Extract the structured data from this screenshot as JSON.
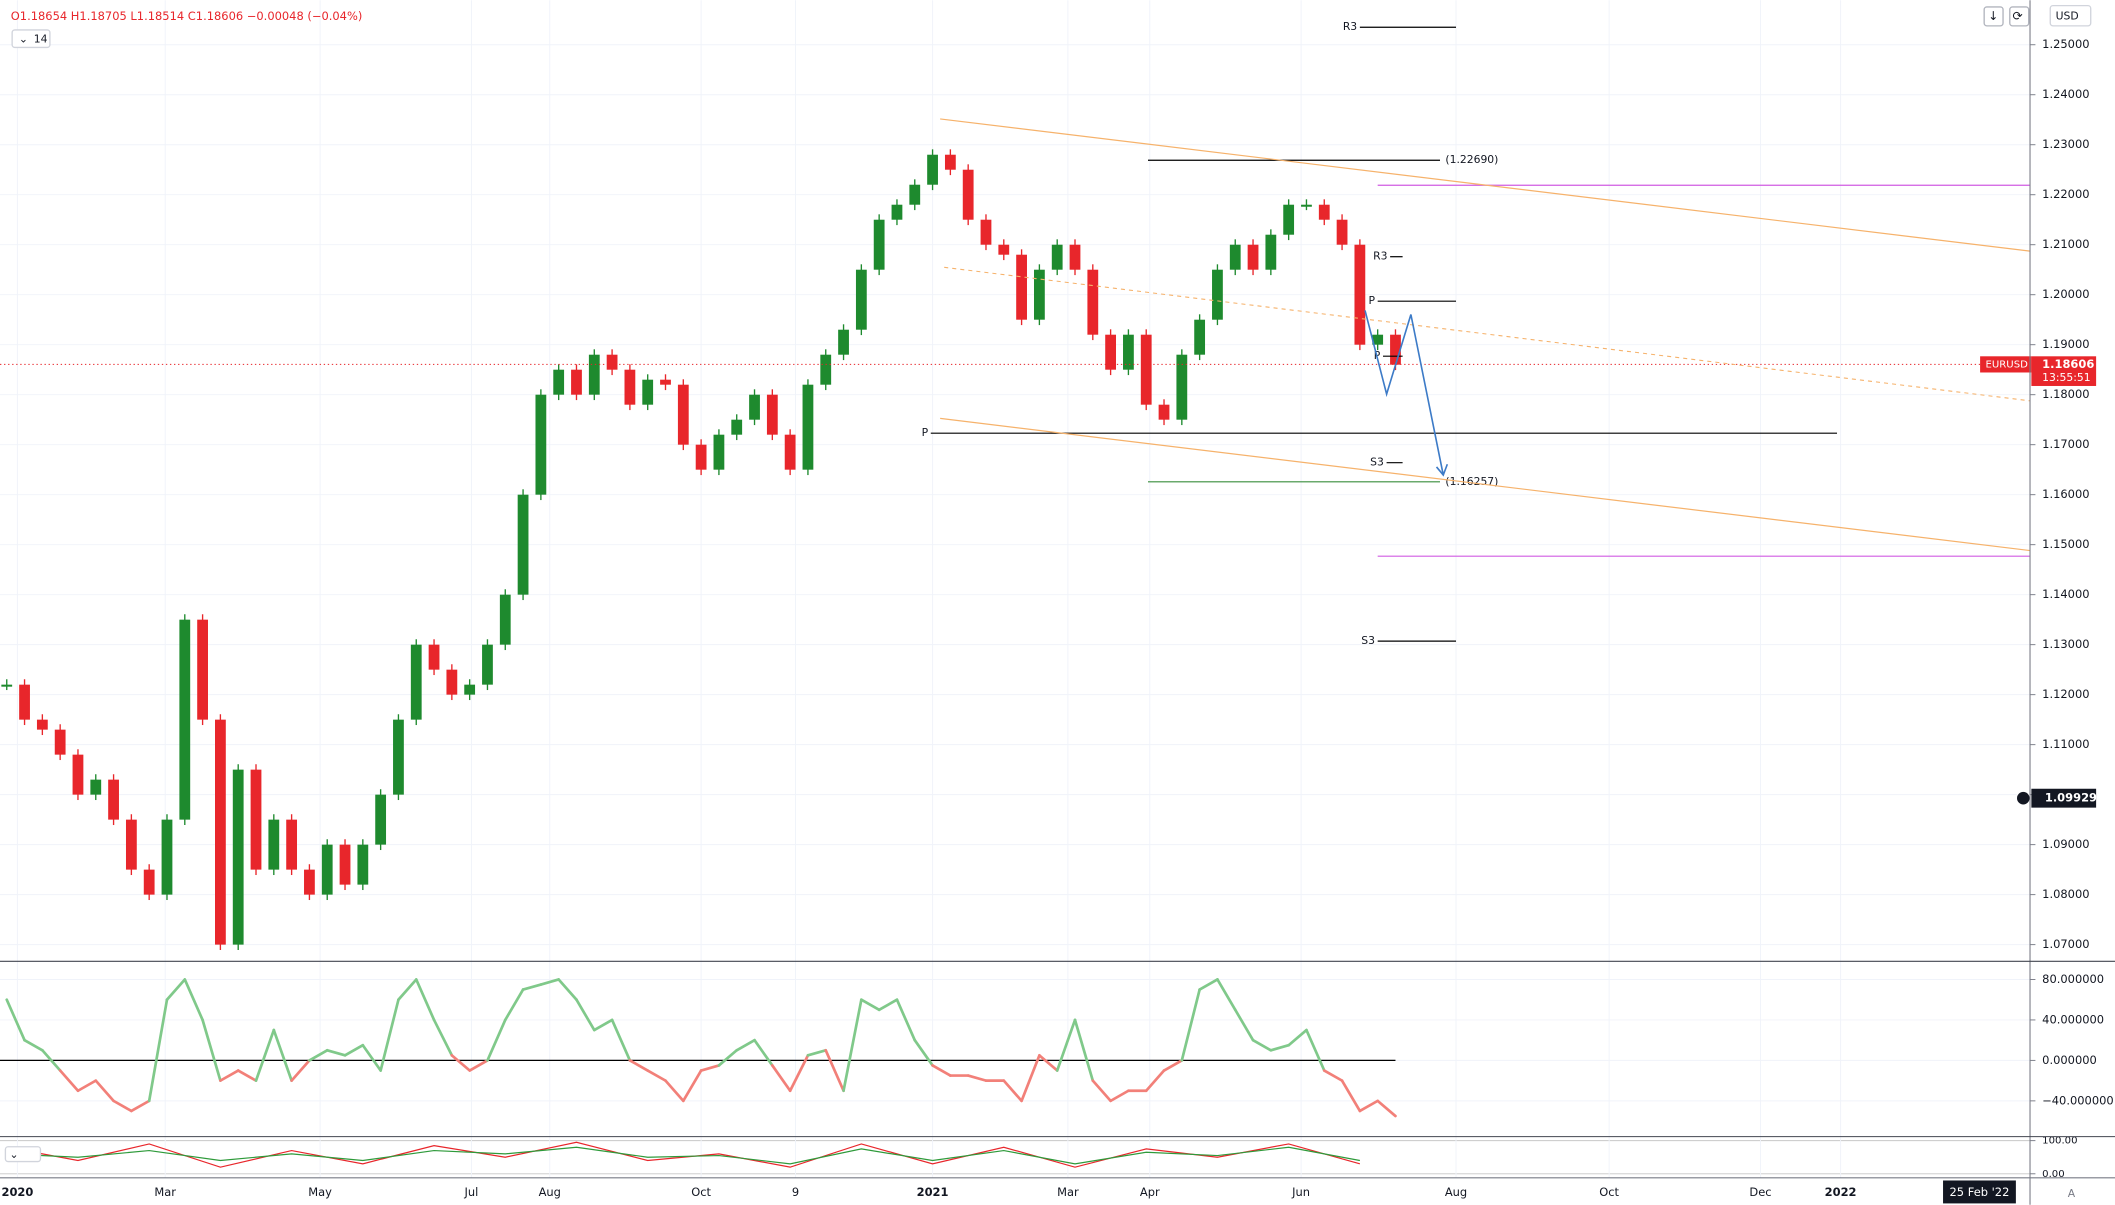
{
  "header": {
    "ohlc": "O1.18654 H1.18705 L1.18514 C1.18606 −0.00048 (−0.04%)",
    "interval": "14",
    "currency": "USD"
  },
  "chart_data": [
    {
      "type": "candlestick",
      "symbol": "EURUSD",
      "up_color": "#1e8a2e",
      "down_color": "#e8262b",
      "x": [
        0,
        1,
        2,
        3,
        4,
        5,
        6,
        7,
        8,
        9,
        10,
        11,
        12,
        13,
        14,
        15,
        16,
        17,
        18,
        19,
        20,
        21,
        22,
        23,
        24,
        25,
        26,
        27,
        28,
        29,
        30,
        31,
        32,
        33,
        34,
        35,
        36,
        37,
        38,
        39,
        40,
        41,
        42,
        43,
        44,
        45,
        46,
        47,
        48,
        49,
        50,
        51,
        52,
        53,
        54,
        55,
        56,
        57,
        58,
        59,
        60,
        61,
        62,
        63,
        64,
        65,
        66,
        67,
        68,
        69,
        70,
        71,
        72,
        73,
        74,
        75,
        76,
        77,
        78
      ],
      "values": [
        1.122,
        1.115,
        1.113,
        1.108,
        1.1,
        1.103,
        1.095,
        1.085,
        1.08,
        1.095,
        1.135,
        1.115,
        1.07,
        1.105,
        1.085,
        1.095,
        1.085,
        1.08,
        1.09,
        1.082,
        1.09,
        1.1,
        1.115,
        1.13,
        1.125,
        1.12,
        1.122,
        1.13,
        1.14,
        1.16,
        1.18,
        1.185,
        1.18,
        1.188,
        1.185,
        1.178,
        1.183,
        1.182,
        1.17,
        1.165,
        1.172,
        1.175,
        1.18,
        1.172,
        1.165,
        1.182,
        1.188,
        1.193,
        1.205,
        1.215,
        1.218,
        1.222,
        1.228,
        1.225,
        1.215,
        1.21,
        1.208,
        1.195,
        1.205,
        1.21,
        1.205,
        1.192,
        1.185,
        1.192,
        1.178,
        1.175,
        1.188,
        1.195,
        1.205,
        1.21,
        1.205,
        1.212,
        1.218,
        1.218,
        1.215,
        1.21,
        1.19,
        1.192,
        1.186
      ],
      "xlim": [
        -0.379,
        113.64
      ],
      "xticks": [
        {
          "value": 0.6,
          "label": "2020"
        },
        {
          "value": 8.9,
          "label": "Mar"
        },
        {
          "value": 17.6,
          "label": "May"
        },
        {
          "value": 26.1,
          "label": "Jul"
        },
        {
          "value": 30.5,
          "label": "Aug"
        },
        {
          "value": 39,
          "label": "Oct"
        },
        {
          "value": 44.3,
          "label": "9"
        },
        {
          "value": 52,
          "label": "2021"
        },
        {
          "value": 59.6,
          "label": "Mar"
        },
        {
          "value": 64.2,
          "label": "Apr"
        },
        {
          "value": 72.7,
          "label": "Jun"
        },
        {
          "value": 81.4,
          "label": "Aug"
        },
        {
          "value": 90,
          "label": "Oct"
        },
        {
          "value": 98.5,
          "label": "Dec"
        },
        {
          "value": 103,
          "label": "2022"
        }
      ],
      "cursor_date": {
        "value": 110.8,
        "label": "25 Feb '22"
      },
      "ylim": [
        1.0668,
        1.2589
      ],
      "yticks": [
        {
          "value": 1.25,
          "label": "1.25000"
        },
        {
          "value": 1.24,
          "label": "1.24000"
        },
        {
          "value": 1.23,
          "label": "1.23000"
        },
        {
          "value": 1.22,
          "label": "1.22000"
        },
        {
          "value": 1.21,
          "label": "1.21000"
        },
        {
          "value": 1.2,
          "label": "1.20000"
        },
        {
          "value": 1.19,
          "label": "1.19000"
        },
        {
          "value": 1.18,
          "label": "1.18000"
        },
        {
          "value": 1.17,
          "label": "1.17000"
        },
        {
          "value": 1.16,
          "label": "1.16000"
        },
        {
          "value": 1.15,
          "label": "1.15000"
        },
        {
          "value": 1.14,
          "label": "1.14000"
        },
        {
          "value": 1.13,
          "label": "1.13000"
        },
        {
          "value": 1.12,
          "label": "1.12000"
        },
        {
          "value": 1.11,
          "label": "1.11000"
        },
        {
          "value": 1.1,
          "label": "1.10000"
        },
        {
          "value": 1.09,
          "label": "1.09000"
        },
        {
          "value": 1.08,
          "label": "1.08000"
        },
        {
          "value": 1.07,
          "label": "1.07000"
        }
      ],
      "last_price": {
        "value": 1.18606,
        "countdown": "13:55:51",
        "color": "#e8262b"
      },
      "crosshair_price": 1.09929,
      "levels": [
        {
          "label": "R3",
          "value": 1.2535,
          "x": [
            76,
            81.4
          ],
          "color": "#000000"
        },
        {
          "label": "(1.22690)",
          "value": 1.2269,
          "x": [
            64.1,
            80.5
          ],
          "color": "#000000"
        },
        {
          "label": "R3",
          "value": 1.2076,
          "x": [
            77.7,
            78.4
          ],
          "color": "#000000"
        },
        {
          "label": "P",
          "value": 1.1987,
          "x": [
            77,
            81.4
          ],
          "color": "#000000"
        },
        {
          "label": "P",
          "value": 1.1877,
          "x": [
            77.3,
            78.4
          ],
          "color": "#000000"
        },
        {
          "label": "P",
          "value": 1.1723,
          "x": [
            51.9,
            102.8
          ],
          "color": "#000000"
        },
        {
          "label": "S3",
          "value": 1.1664,
          "x": [
            77.5,
            78.4
          ],
          "color": "#000000"
        },
        {
          "label": "(1.16257)",
          "value": 1.16257,
          "x": [
            64.1,
            80.5
          ],
          "color": "#388e3c"
        },
        {
          "label": "S3",
          "value": 1.1307,
          "x": [
            77,
            81.4
          ],
          "color": "#000000"
        }
      ],
      "lines": [
        {
          "value": 1.2219,
          "x": [
            77,
            113.64
          ],
          "color": "#d05ce3"
        },
        {
          "value": 1.1477,
          "x": [
            77,
            113.64
          ],
          "color": "#d05ce3"
        }
      ]
    },
    {
      "type": "line",
      "up_color": "#80c98a",
      "down_color": "#f28079",
      "x": [
        0,
        1,
        2,
        3,
        4,
        5,
        6,
        7,
        8,
        9,
        10,
        11,
        12,
        13,
        14,
        15,
        16,
        17,
        18,
        19,
        20,
        21,
        22,
        23,
        24,
        25,
        26,
        27,
        28,
        29,
        30,
        31,
        32,
        33,
        34,
        35,
        36,
        37,
        38,
        39,
        40,
        41,
        42,
        43,
        44,
        45,
        46,
        47,
        48,
        49,
        50,
        51,
        52,
        53,
        54,
        55,
        56,
        57,
        58,
        59,
        60,
        61,
        62,
        63,
        64,
        65,
        66,
        67,
        68,
        69,
        70,
        71,
        72,
        73,
        74,
        75,
        76,
        77,
        78
      ],
      "values": [
        60,
        20,
        10,
        -10,
        -30,
        -20,
        -40,
        -50,
        -40,
        60,
        80,
        40,
        -20,
        -10,
        -20,
        30,
        -20,
        0,
        10,
        5,
        15,
        -10,
        60,
        80,
        40,
        5,
        -10,
        0,
        40,
        70,
        75,
        80,
        60,
        30,
        40,
        0,
        -10,
        -20,
        -40,
        -10,
        -5,
        10,
        20,
        -5,
        -30,
        5,
        10,
        -30,
        60,
        50,
        60,
        20,
        -5,
        -15,
        -15,
        -20,
        -20,
        -40,
        5,
        -10,
        40,
        -20,
        -40,
        -30,
        -30,
        -10,
        0,
        70,
        80,
        50,
        20,
        10,
        15,
        30,
        -10,
        -20,
        -50,
        -40,
        -55
      ],
      "ylim": [
        -74.7,
        97.3
      ],
      "yticks": [
        {
          "value": 80,
          "label": "80.000000"
        },
        {
          "value": 40,
          "label": "40.000000"
        },
        {
          "value": 0,
          "label": "0.000000"
        },
        {
          "value": -40,
          "label": "−40.000000"
        }
      ]
    },
    {
      "type": "line",
      "legend": "2",
      "x": [
        0,
        4,
        8,
        12,
        16,
        20,
        24,
        28,
        32,
        36,
        40,
        44,
        48,
        52,
        56,
        60,
        64,
        68,
        72,
        76
      ],
      "series": [
        {
          "color": "#e8262b",
          "values": [
            80,
            40,
            90,
            20,
            70,
            30,
            85,
            50,
            95,
            40,
            60,
            20,
            90,
            30,
            80,
            20,
            75,
            50,
            90,
            30
          ]
        },
        {
          "color": "#2e9a3a",
          "values": [
            60,
            50,
            70,
            40,
            60,
            40,
            70,
            60,
            80,
            50,
            55,
            30,
            75,
            40,
            70,
            30,
            65,
            55,
            80,
            40
          ]
        }
      ],
      "ylim": [
        -8,
        110
      ],
      "yticks": [
        {
          "value": 100,
          "label": "100.00"
        },
        {
          "value": 0,
          "label": "0.00"
        }
      ]
    }
  ]
}
